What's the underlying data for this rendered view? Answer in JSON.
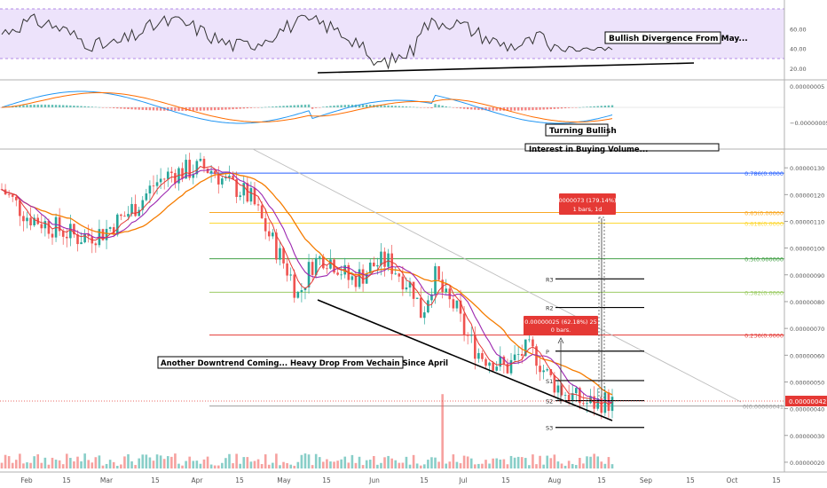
{
  "colors": {
    "candle_up": "#26a69a",
    "candle_down": "#ef5350",
    "ma_orange": "#f57c00",
    "ma_purple": "#9c27b0",
    "ma_red": "#e53935",
    "macd_line": "#2196f3",
    "signal_line": "#ff6d00",
    "rsi_line": "#333333",
    "rsi_band": "#ede3fb",
    "price_tag": "#e53935"
  },
  "chart_data": {
    "type": "candlestick",
    "x_axis_labels": [
      "Feb",
      "15",
      "Mar",
      "15",
      "Apr",
      "15",
      "May",
      "15",
      "Jun",
      "15",
      "Jul",
      "15",
      "Aug",
      "15",
      "Sep",
      "15",
      "Oct",
      "15"
    ],
    "price_axis_ticks": [
      "0.00000130",
      "0.00000120",
      "0.00000110",
      "0.00000100",
      "0.00000090",
      "0.00000080",
      "0.00000070",
      "0.00000060",
      "0.00000050",
      "0.00000040",
      "0.00000030",
      "0.00000020"
    ],
    "price_ylim": [
      1.7e-07,
      1.37e-06
    ],
    "last_price": "0.00000042",
    "price_series_approx": [
      [
        0,
        122
      ],
      [
        12,
        112
      ],
      [
        24,
        108
      ],
      [
        36,
        104
      ],
      [
        48,
        106
      ],
      [
        58,
        112
      ],
      [
        66,
        118
      ],
      [
        72,
        124
      ],
      [
        80,
        128
      ],
      [
        88,
        129
      ],
      [
        95,
        130
      ],
      [
        100,
        129
      ],
      [
        106,
        124
      ],
      [
        112,
        122
      ],
      [
        118,
        118
      ],
      [
        124,
        108
      ],
      [
        130,
        99
      ],
      [
        136,
        90
      ],
      [
        140,
        82
      ],
      [
        146,
        94
      ],
      [
        152,
        97
      ],
      [
        158,
        94
      ],
      [
        164,
        88
      ],
      [
        170,
        90
      ],
      [
        176,
        94
      ],
      [
        182,
        95
      ],
      [
        188,
        90
      ],
      [
        194,
        85
      ],
      [
        198,
        75
      ],
      [
        204,
        90
      ],
      [
        210,
        80
      ],
      [
        214,
        78
      ],
      [
        218,
        69
      ],
      [
        222,
        64
      ],
      [
        226,
        60
      ],
      [
        232,
        58
      ],
      [
        238,
        55
      ],
      [
        244,
        60
      ],
      [
        248,
        62
      ],
      [
        252,
        60
      ],
      [
        256,
        54
      ],
      [
        260,
        50
      ],
      [
        264,
        47
      ],
      [
        268,
        45
      ],
      [
        272,
        43
      ],
      [
        276,
        42
      ],
      [
        280,
        42
      ],
      [
        284,
        43
      ],
      [
        288,
        42
      ]
    ],
    "fibonacci_levels": [
      {
        "label": "0.786(0.0000",
        "price": 1.28e-06,
        "color": "#2962ff"
      },
      {
        "label": "0.65(0.00000",
        "price": 1.133e-06,
        "color": "#f9a825"
      },
      {
        "label": "0.618(0.0000",
        "price": 1.093e-06,
        "color": "#fdd835"
      },
      {
        "label": "0.5(0.000000",
        "price": 9.6e-07,
        "color": "#43a047"
      },
      {
        "label": "0.382(0.0000",
        "price": 8.35e-07,
        "color": "#9ccc65"
      },
      {
        "label": "0.236(0.0000",
        "price": 6.75e-07,
        "color": "#e53935"
      },
      {
        "label": "0(0.00000041",
        "price": 4.1e-07,
        "color": "#9e9e9e"
      }
    ],
    "pivot_levels": [
      {
        "label": "R3",
        "price": 8.85e-07
      },
      {
        "label": "R2",
        "price": 7.78e-07
      },
      {
        "label": "P",
        "price": 6.15e-07
      },
      {
        "label": "S1",
        "price": 5.05e-07
      },
      {
        "label": "S2",
        "price": 4.3e-07
      },
      {
        "label": "S3",
        "price": 3.3e-07
      }
    ],
    "measurements": [
      {
        "line1": "0.00000073 (179.14%) 73",
        "line2": "1 bars, 1d"
      },
      {
        "line1": "0.00000025 (62.18%) 25",
        "line2": "0 bars."
      }
    ],
    "annotations": {
      "rsi_note": "Bullish Divergence From May...",
      "macd_note": "Turning Bullish",
      "macd_note_partial": "Interest in Buying Volume...",
      "price_note": "Another Downtrend Coming... Heavy Drop From Vechain Since April"
    },
    "rsi": {
      "ticks": [
        "60.00",
        "40.00",
        "20.00"
      ],
      "ylim": [
        10,
        80
      ],
      "band": [
        30,
        70
      ]
    },
    "macd": {
      "ticks": [
        "0.00000005",
        "−0.00000005"
      ]
    }
  }
}
